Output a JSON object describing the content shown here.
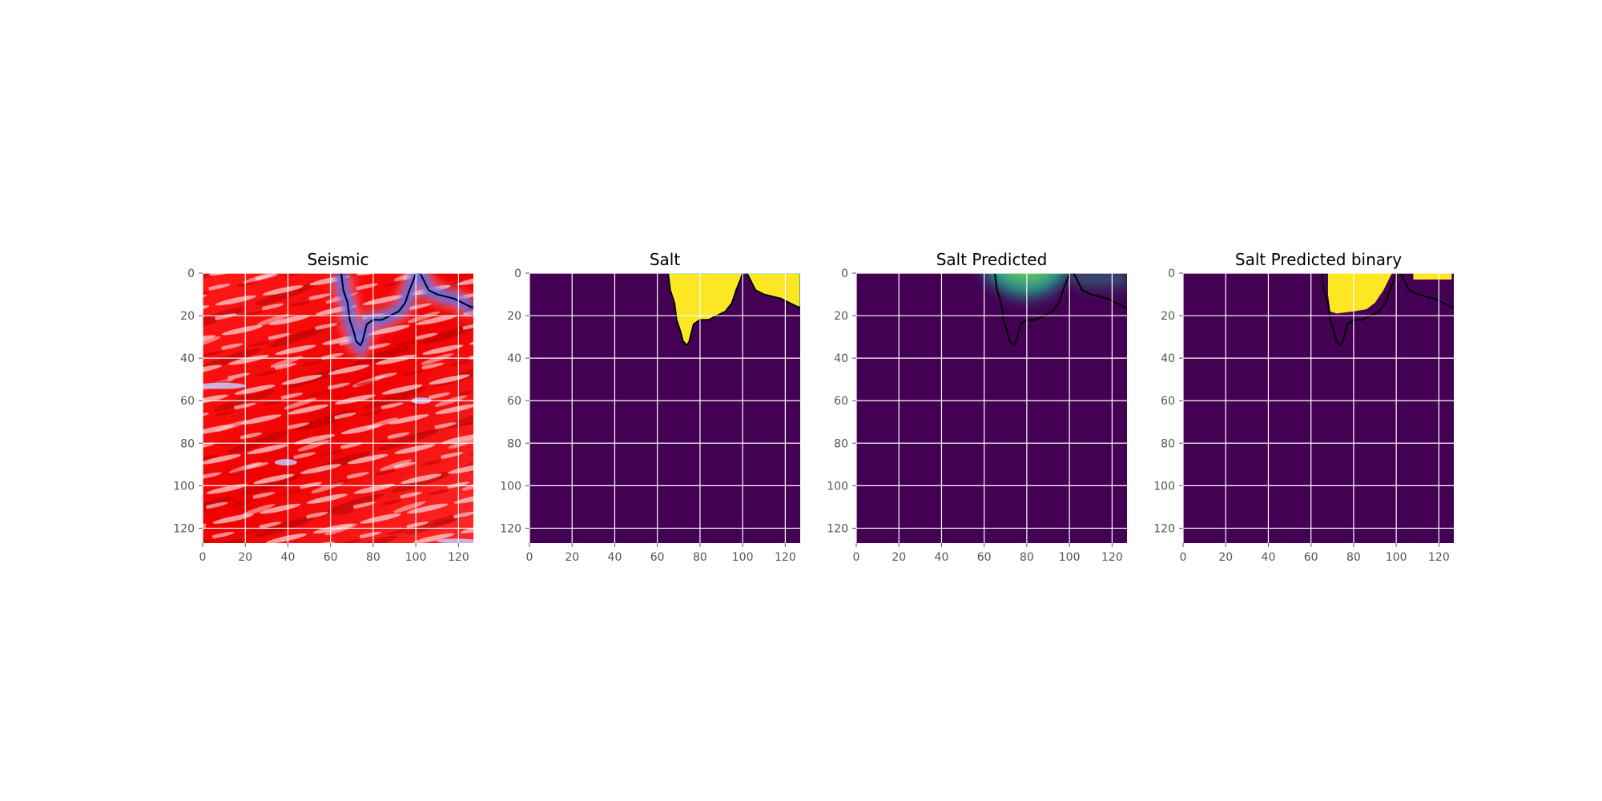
{
  "figure": {
    "background": "#ffffff"
  },
  "chart_data": [
    {
      "type": "heatmap",
      "title": "Seismic",
      "colormap": "seismic",
      "grid": true,
      "xlim": [
        0,
        127
      ],
      "ylim": [
        127,
        0
      ],
      "xticks": [
        0,
        20,
        40,
        60,
        80,
        100,
        120
      ],
      "yticks": [
        0,
        20,
        40,
        60,
        80,
        100,
        120
      ],
      "salt_contour": [
        [
          65,
          0
        ],
        [
          66,
          8
        ],
        [
          68,
          14
        ],
        [
          69,
          22
        ],
        [
          71,
          28
        ],
        [
          72,
          32
        ],
        [
          74,
          34
        ],
        [
          75,
          32
        ],
        [
          76,
          28
        ],
        [
          77,
          24
        ],
        [
          80,
          22
        ],
        [
          84,
          22
        ],
        [
          88,
          20
        ],
        [
          92,
          18
        ],
        [
          95,
          14
        ],
        [
          97,
          8
        ],
        [
          99,
          3
        ],
        [
          100,
          0
        ],
        [
          102,
          0
        ],
        [
          104,
          4
        ],
        [
          106,
          8
        ],
        [
          110,
          10
        ],
        [
          114,
          11
        ],
        [
          118,
          12
        ],
        [
          122,
          14
        ],
        [
          126,
          16
        ],
        [
          127,
          16
        ]
      ]
    },
    {
      "type": "heatmap",
      "title": "Salt",
      "colormap": "viridis",
      "grid": true,
      "xlim": [
        0,
        127
      ],
      "ylim": [
        127,
        0
      ],
      "xticks": [
        0,
        20,
        40,
        60,
        80,
        100,
        120
      ],
      "yticks": [
        0,
        20,
        40,
        60,
        80,
        100,
        120
      ],
      "salt_contour": [
        [
          65,
          0
        ],
        [
          66,
          8
        ],
        [
          68,
          14
        ],
        [
          69,
          22
        ],
        [
          71,
          28
        ],
        [
          72,
          32
        ],
        [
          74,
          34
        ],
        [
          75,
          32
        ],
        [
          76,
          28
        ],
        [
          77,
          24
        ],
        [
          80,
          22
        ],
        [
          84,
          22
        ],
        [
          88,
          20
        ],
        [
          92,
          18
        ],
        [
          95,
          14
        ],
        [
          97,
          8
        ],
        [
          99,
          3
        ],
        [
          100,
          0
        ],
        [
          102,
          0
        ],
        [
          104,
          4
        ],
        [
          106,
          8
        ],
        [
          110,
          10
        ],
        [
          114,
          11
        ],
        [
          118,
          12
        ],
        [
          122,
          14
        ],
        [
          126,
          16
        ],
        [
          127,
          16
        ]
      ]
    },
    {
      "type": "heatmap",
      "title": "Salt Predicted",
      "colormap": "viridis",
      "grid": true,
      "xlim": [
        0,
        127
      ],
      "ylim": [
        127,
        0
      ],
      "xticks": [
        0,
        20,
        40,
        60,
        80,
        100,
        120
      ],
      "yticks": [
        0,
        20,
        40,
        60,
        80,
        100,
        120
      ],
      "salt_contour": [
        [
          65,
          0
        ],
        [
          66,
          8
        ],
        [
          68,
          14
        ],
        [
          69,
          22
        ],
        [
          71,
          28
        ],
        [
          72,
          32
        ],
        [
          74,
          34
        ],
        [
          75,
          32
        ],
        [
          76,
          28
        ],
        [
          77,
          24
        ],
        [
          80,
          22
        ],
        [
          84,
          22
        ],
        [
          88,
          20
        ],
        [
          92,
          18
        ],
        [
          95,
          14
        ],
        [
          97,
          8
        ],
        [
          99,
          3
        ],
        [
          100,
          0
        ],
        [
          102,
          0
        ],
        [
          104,
          4
        ],
        [
          106,
          8
        ],
        [
          110,
          10
        ],
        [
          114,
          11
        ],
        [
          118,
          12
        ],
        [
          122,
          14
        ],
        [
          126,
          16
        ],
        [
          127,
          16
        ]
      ]
    },
    {
      "type": "heatmap",
      "title": "Salt Predicted binary",
      "colormap": "viridis",
      "grid": true,
      "xlim": [
        0,
        127
      ],
      "ylim": [
        127,
        0
      ],
      "xticks": [
        0,
        20,
        40,
        60,
        80,
        100,
        120
      ],
      "yticks": [
        0,
        20,
        40,
        60,
        80,
        100,
        120
      ],
      "salt_contour": [
        [
          65,
          0
        ],
        [
          66,
          8
        ],
        [
          68,
          14
        ],
        [
          69,
          22
        ],
        [
          71,
          28
        ],
        [
          72,
          32
        ],
        [
          74,
          34
        ],
        [
          75,
          32
        ],
        [
          76,
          28
        ],
        [
          77,
          24
        ],
        [
          80,
          22
        ],
        [
          84,
          22
        ],
        [
          88,
          20
        ],
        [
          92,
          18
        ],
        [
          95,
          14
        ],
        [
          97,
          8
        ],
        [
          99,
          3
        ],
        [
          100,
          0
        ],
        [
          102,
          0
        ],
        [
          104,
          4
        ],
        [
          106,
          8
        ],
        [
          110,
          10
        ],
        [
          114,
          11
        ],
        [
          118,
          12
        ],
        [
          122,
          14
        ],
        [
          126,
          16
        ],
        [
          127,
          16
        ]
      ]
    }
  ]
}
